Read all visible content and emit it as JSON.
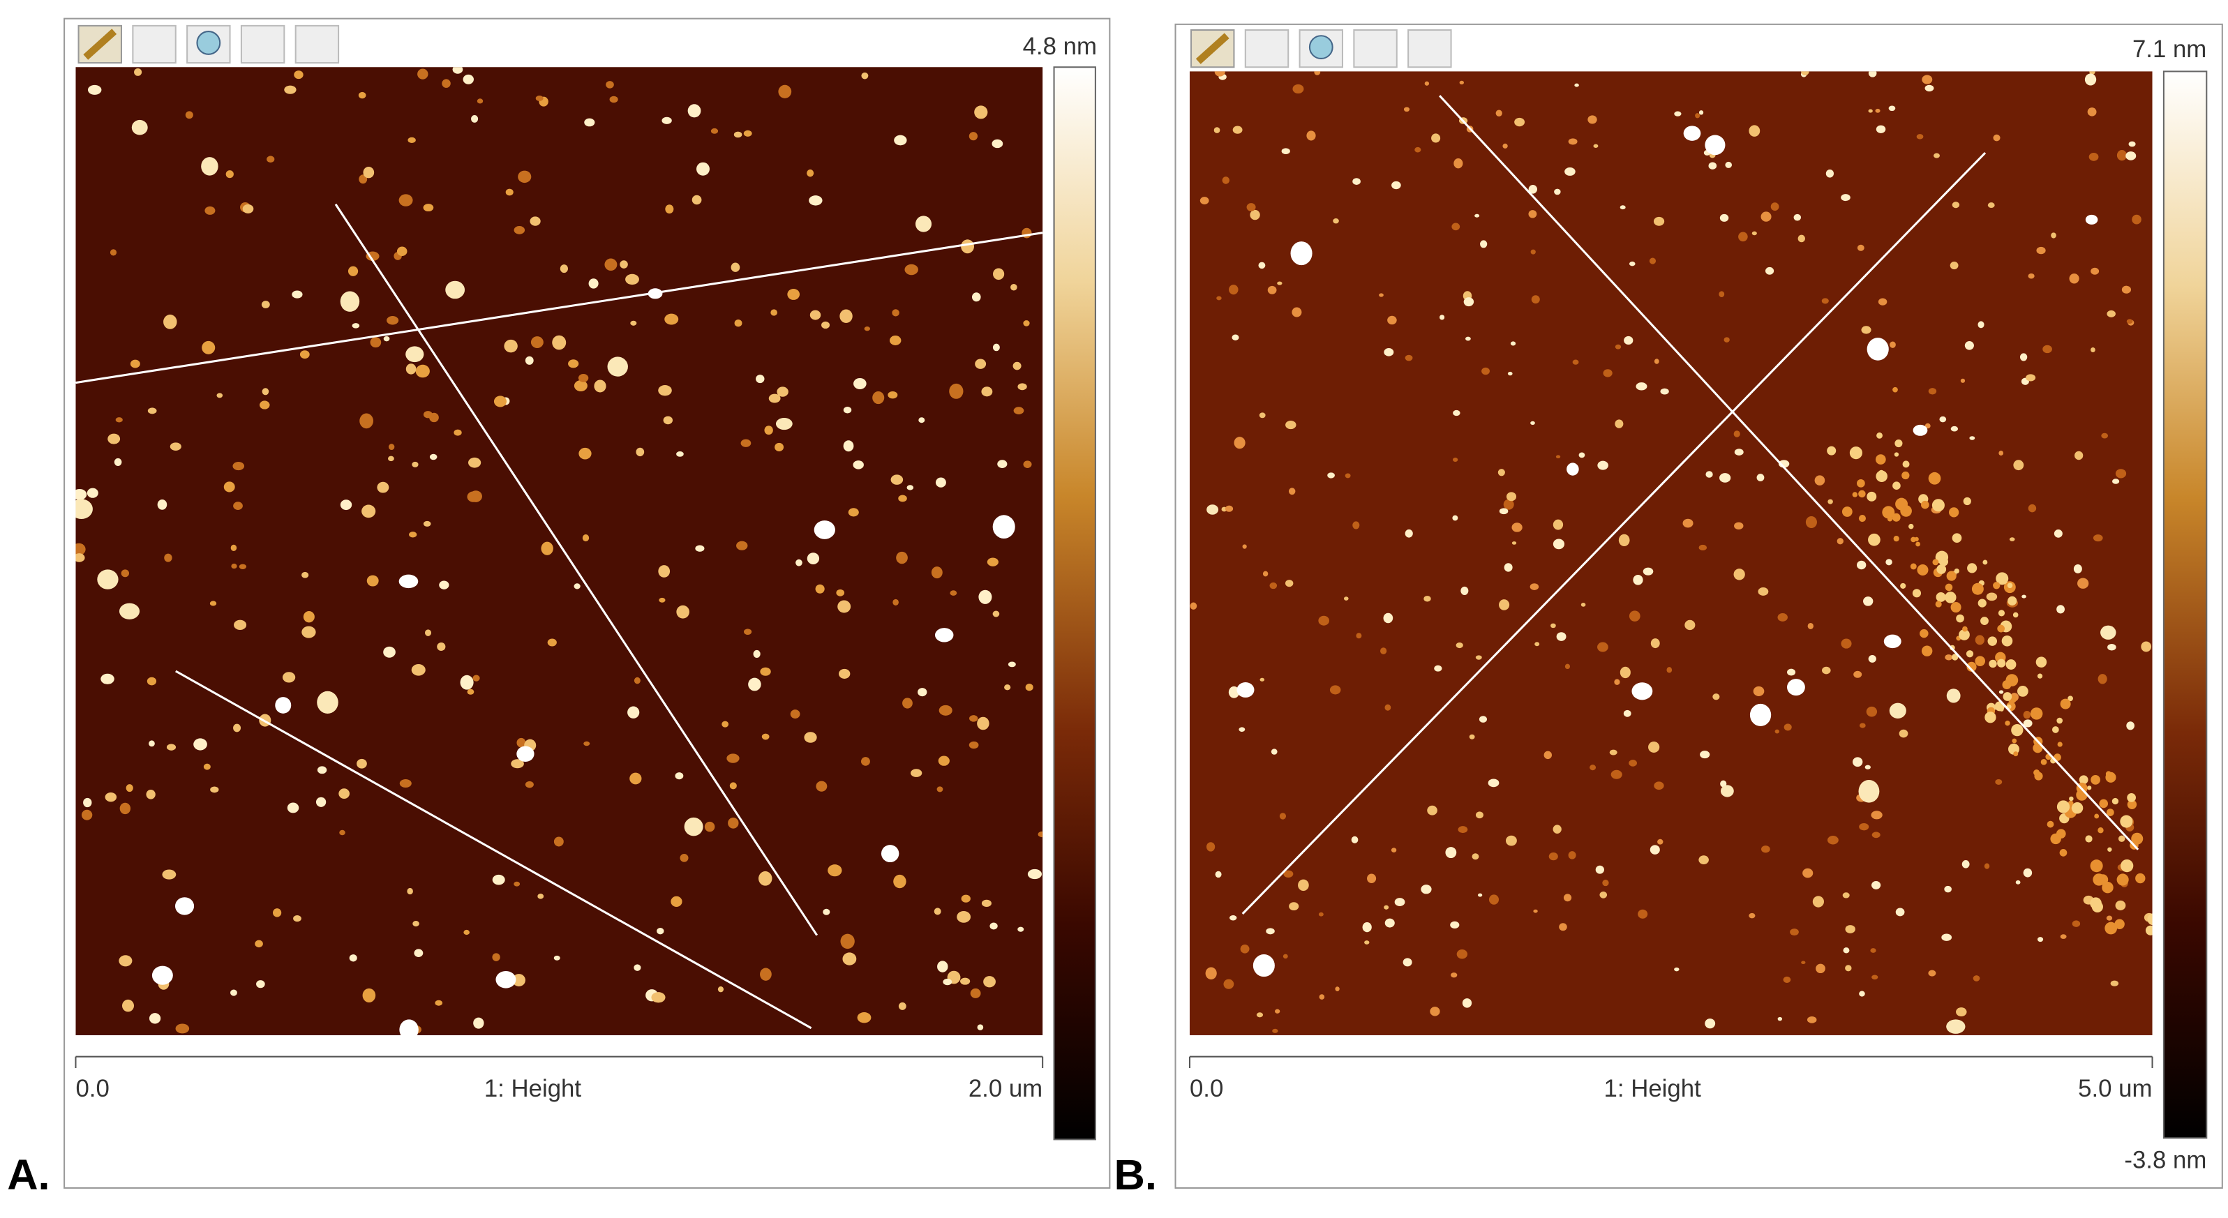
{
  "panels": [
    {
      "label": "A.",
      "scale_max": "4.8 nm",
      "axis_start": "0.0",
      "axis_end": "2.0 um",
      "channel": "1: Height"
    },
    {
      "label": "B.",
      "scale_max": "7.1 nm",
      "scale_min": "-3.8 nm",
      "axis_start": "0.0",
      "axis_end": "5.0 um",
      "channel": "1: Height"
    }
  ]
}
